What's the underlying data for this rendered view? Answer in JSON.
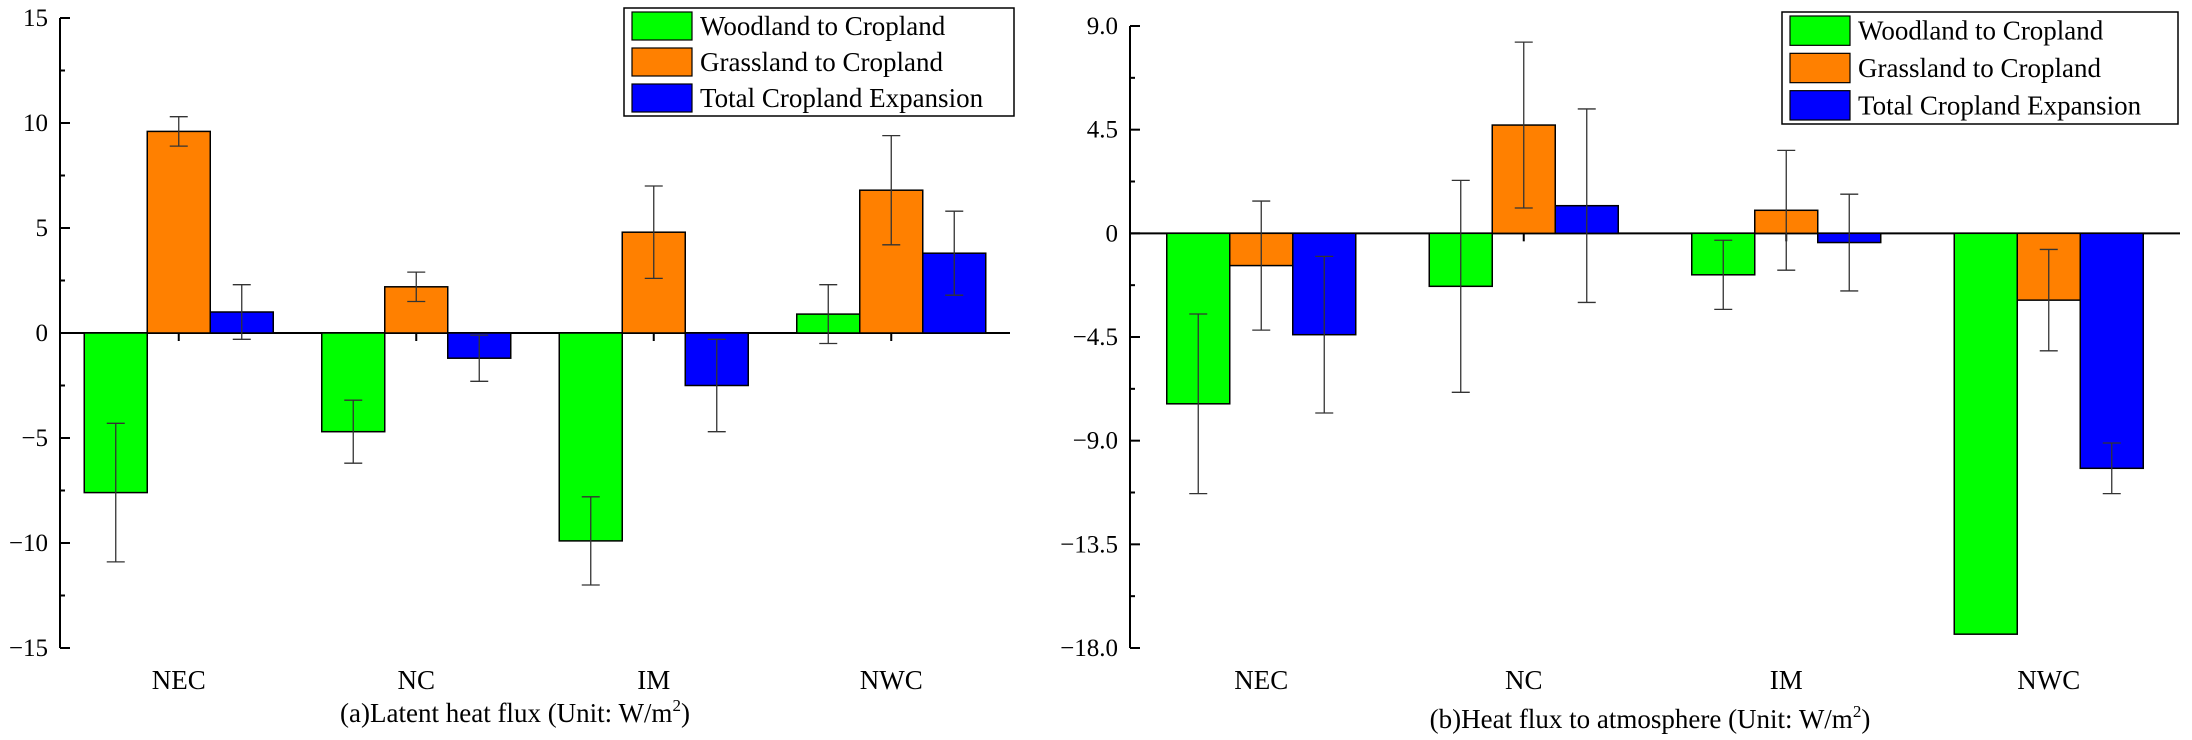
{
  "colors": {
    "series": [
      "#00ff00",
      "#ff8000",
      "#0000ff"
    ]
  },
  "chart_data": [
    {
      "type": "bar",
      "title": "(a)Latent heat flux (Unit: W/m",
      "title_sup": "2",
      "title_end": ")",
      "categories": [
        "NEC",
        "NC",
        "IM",
        "NWC"
      ],
      "series": [
        {
          "name": "Woodland to Cropland",
          "values": [
            -7.6,
            -4.7,
            -9.9,
            0.9
          ],
          "errors": [
            3.3,
            1.5,
            2.1,
            1.4
          ]
        },
        {
          "name": "Grassland to Cropland",
          "values": [
            9.6,
            2.2,
            4.8,
            6.8
          ],
          "errors": [
            0.7,
            0.7,
            2.2,
            2.6
          ]
        },
        {
          "name": "Total Cropland Expansion",
          "values": [
            1.0,
            -1.2,
            -2.5,
            3.8
          ],
          "errors": [
            1.3,
            1.1,
            2.2,
            2.0
          ]
        }
      ],
      "ylim": [
        -15,
        15
      ],
      "yticks": [
        -15,
        -10,
        -5,
        0,
        5,
        10,
        15
      ],
      "ytick_labels": [
        "−15",
        "−10",
        "−5",
        "0",
        "5",
        "10",
        "15"
      ],
      "legend_position": "top-right"
    },
    {
      "type": "bar",
      "title": "(b)Heat flux to atmosphere (Unit: W/m",
      "title_sup": "2",
      "title_end": ")",
      "categories": [
        "NEC",
        "NC",
        "IM",
        "NWC"
      ],
      "series": [
        {
          "name": "Woodland to Cropland",
          "values": [
            -7.4,
            -2.3,
            -1.8,
            -17.4
          ],
          "errors": [
            3.9,
            4.6,
            1.5,
            0.0
          ]
        },
        {
          "name": "Grassland to Cropland",
          "values": [
            -1.4,
            4.7,
            1.0,
            -2.9
          ],
          "errors": [
            2.8,
            3.6,
            2.6,
            2.2
          ]
        },
        {
          "name": "Total Cropland Expansion",
          "values": [
            -4.4,
            1.2,
            -0.4,
            -10.2
          ],
          "errors": [
            3.4,
            4.2,
            2.1,
            1.1
          ]
        }
      ],
      "ylim": [
        -18,
        9
      ],
      "yticks": [
        -18,
        -13.5,
        -9,
        -4.5,
        0,
        4.5,
        9
      ],
      "ytick_labels": [
        "−18.0",
        "−13.5",
        "−9.0",
        "−4.5",
        "0",
        "4.5",
        "9.0"
      ],
      "legend_position": "top-right"
    }
  ]
}
